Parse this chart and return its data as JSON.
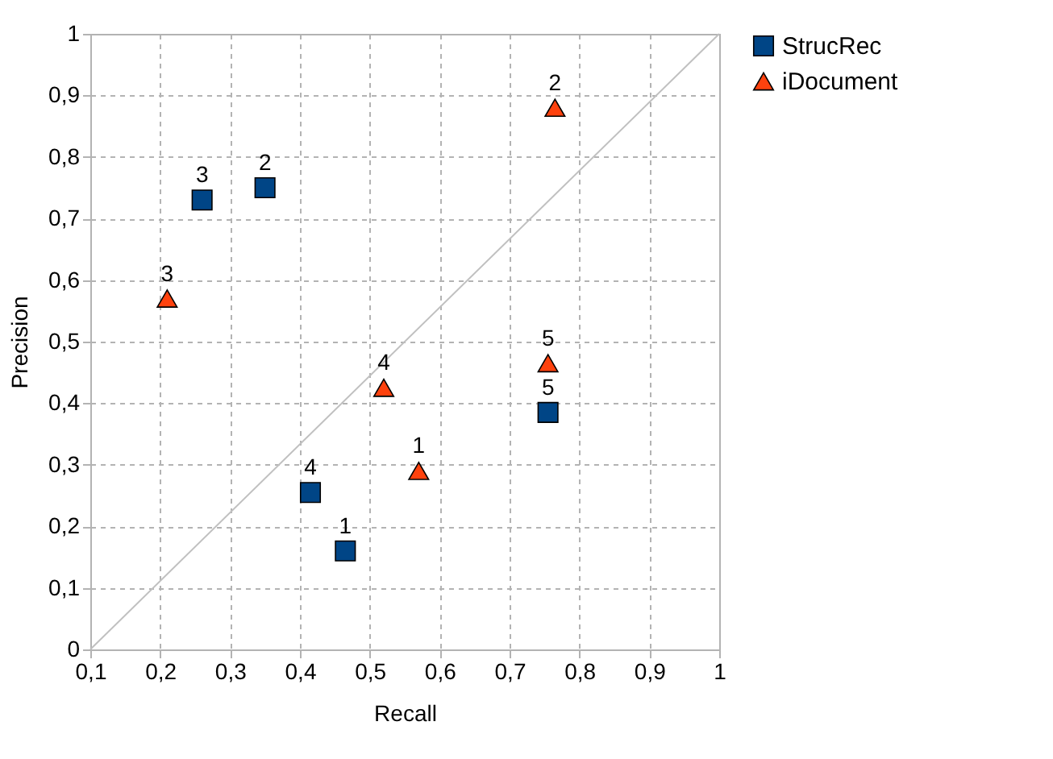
{
  "chart_data": {
    "type": "scatter",
    "xlabel": "Recall",
    "ylabel": "Precision",
    "xlim": [
      0.1,
      1
    ],
    "ylim": [
      0,
      1
    ],
    "xticks": [
      {
        "value": 0.1,
        "label": "0,1"
      },
      {
        "value": 0.2,
        "label": "0,2"
      },
      {
        "value": 0.3,
        "label": "0,3"
      },
      {
        "value": 0.4,
        "label": "0,4"
      },
      {
        "value": 0.5,
        "label": "0,5"
      },
      {
        "value": 0.6,
        "label": "0,6"
      },
      {
        "value": 0.7,
        "label": "0,7"
      },
      {
        "value": 0.8,
        "label": "0,8"
      },
      {
        "value": 0.9,
        "label": "0,9"
      },
      1
    ],
    "yticks": [
      0,
      {
        "value": 0.1,
        "label": "0,1"
      },
      {
        "value": 0.2,
        "label": "0,2"
      },
      {
        "value": 0.3,
        "label": "0,3"
      },
      {
        "value": 0.4,
        "label": "0,4"
      },
      {
        "value": 0.5,
        "label": "0,5"
      },
      {
        "value": 0.6,
        "label": "0,6"
      },
      {
        "value": 0.7,
        "label": "0,7"
      },
      {
        "value": 0.8,
        "label": "0,8"
      },
      {
        "value": 0.9,
        "label": "0,9"
      },
      1
    ],
    "grid": true,
    "legend": "right",
    "series": [
      {
        "type": "line",
        "color": "#c0c0c0",
        "marker": "none",
        "line_style": "solid",
        "x": [
          0.1,
          1
        ],
        "values": [
          0,
          1
        ]
      },
      {
        "name": "StrucRec",
        "color": "#004586",
        "marker": "square",
        "x": [
          0.465,
          0.35,
          0.26,
          0.415,
          0.755
        ],
        "values": [
          0.16,
          0.75,
          0.73,
          0.255,
          0.385
        ]
      },
      {
        "name": "iDocument",
        "color": "#ff420e",
        "marker": "triangle",
        "x": [
          0.57,
          0.765,
          0.21,
          0.52,
          0.755
        ],
        "values": [
          0.29,
          0.88,
          0.57,
          0.425,
          0.465
        ]
      }
    ],
    "annotations": [
      {
        "text": "1",
        "x": 0.465,
        "y": 0.16
      },
      {
        "text": "2",
        "x": 0.35,
        "y": 0.75
      },
      {
        "text": "3",
        "x": 0.26,
        "y": 0.73
      },
      {
        "text": "4",
        "x": 0.415,
        "y": 0.255
      },
      {
        "text": "5",
        "x": 0.755,
        "y": 0.385
      },
      {
        "text": "1",
        "x": 0.57,
        "y": 0.29
      },
      {
        "text": "2",
        "x": 0.765,
        "y": 0.88
      },
      {
        "text": "3",
        "x": 0.21,
        "y": 0.57
      },
      {
        "text": "4",
        "x": 0.52,
        "y": 0.425
      },
      {
        "text": "5",
        "x": 0.755,
        "y": 0.465
      }
    ]
  }
}
